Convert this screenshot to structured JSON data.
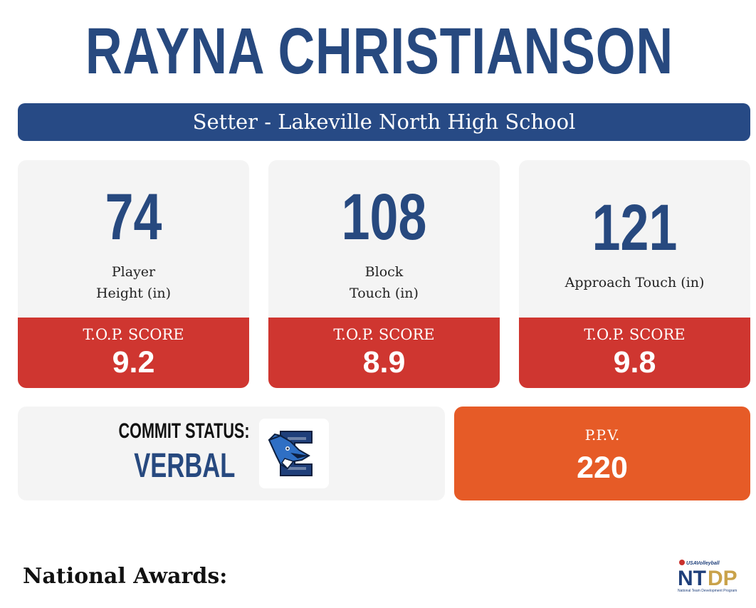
{
  "player": {
    "name": "RAYNA CHRISTIANSON",
    "position_school": "Setter - Lakeville North High School"
  },
  "stats": [
    {
      "value": "74",
      "label_line1": "Player",
      "label_line2": "Height (in)",
      "score_label": "T.O.P. SCORE",
      "score": "9.2"
    },
    {
      "value": "108",
      "label_line1": "Block",
      "label_line2": "Touch (in)",
      "score_label": "T.O.P. SCORE",
      "score": "8.9"
    },
    {
      "value": "121",
      "label_line1": "Approach Touch (in)",
      "label_line2": "",
      "score_label": "T.O.P. SCORE",
      "score": "9.8"
    }
  ],
  "commit": {
    "label": "COMMIT STATUS:",
    "value": "VERBAL",
    "logo_icon": "bluejay-logo-icon"
  },
  "ppv": {
    "label": "P.P.V.",
    "value": "220"
  },
  "awards": {
    "heading": "National Awards:"
  },
  "footer_logo": {
    "icon": "ntdp-logo-icon",
    "top_text": "USAVolleyball",
    "letters_blue": "NT",
    "letters_gold": "DP",
    "caption": "National Team Development Program"
  },
  "colors": {
    "navy": "#27497f",
    "red": "#cf3630",
    "orange": "#e65b27",
    "card_bg": "#f4f4f4",
    "gold": "#c9a24a"
  }
}
